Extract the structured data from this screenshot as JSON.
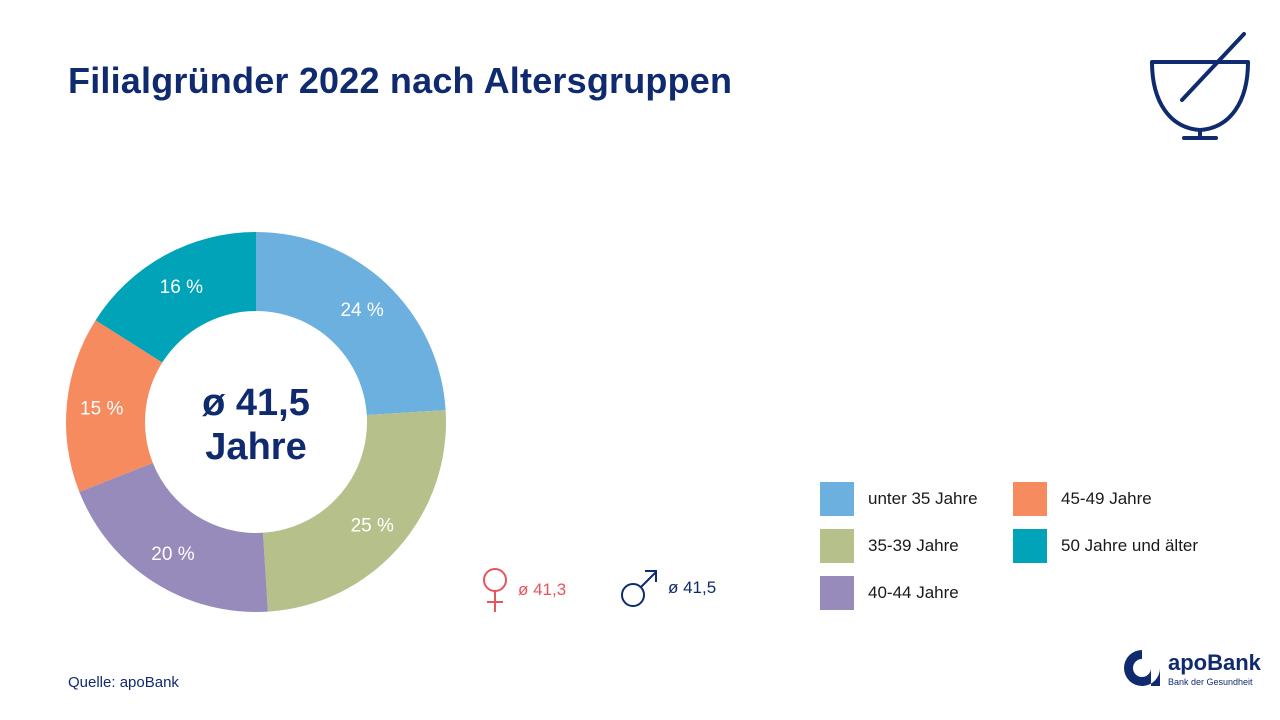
{
  "header": {
    "title": "Filialgründer 2022 nach Altersgruppen"
  },
  "chart_data": {
    "type": "pie",
    "title": "Filialgründer 2022 nach Altersgruppen",
    "categories": [
      "unter 35 Jahre",
      "35-39 Jahre",
      "40-44 Jahre",
      "45-49 Jahre",
      "50 Jahre und älter"
    ],
    "values": [
      24,
      25,
      20,
      15,
      16
    ],
    "value_labels": [
      "24 %",
      "25 %",
      "20 %",
      "15 %",
      "16 %"
    ],
    "colors": [
      "#6cb0e0",
      "#b6c08a",
      "#978bbb",
      "#f68b60",
      "#00a3b8"
    ],
    "center_label": [
      "ø 41,5",
      "Jahre"
    ],
    "legend_position": "bottom-right"
  },
  "stats": {
    "female": {
      "icon": "female-symbol-icon",
      "value": "ø 41,3",
      "color": "#e8545c"
    },
    "male": {
      "icon": "male-symbol-icon",
      "value": "ø 41,5",
      "color": "#0f2a6e"
    }
  },
  "legend": {
    "items": [
      {
        "label": "unter 35 Jahre",
        "color": "#6cb0e0"
      },
      {
        "label": "35-39 Jahre",
        "color": "#b6c08a"
      },
      {
        "label": "40-44 Jahre",
        "color": "#978bbb"
      },
      {
        "label": "45-49 Jahre",
        "color": "#f68b60"
      },
      {
        "label": "50 Jahre und älter",
        "color": "#00a3b8"
      }
    ]
  },
  "footer": {
    "source": "Quelle: apoBank"
  },
  "brand": {
    "name": "apoBank",
    "tagline": "Bank der Gesundheit",
    "icon": "mortar-pestle-icon",
    "color": "#0f2a6e"
  }
}
